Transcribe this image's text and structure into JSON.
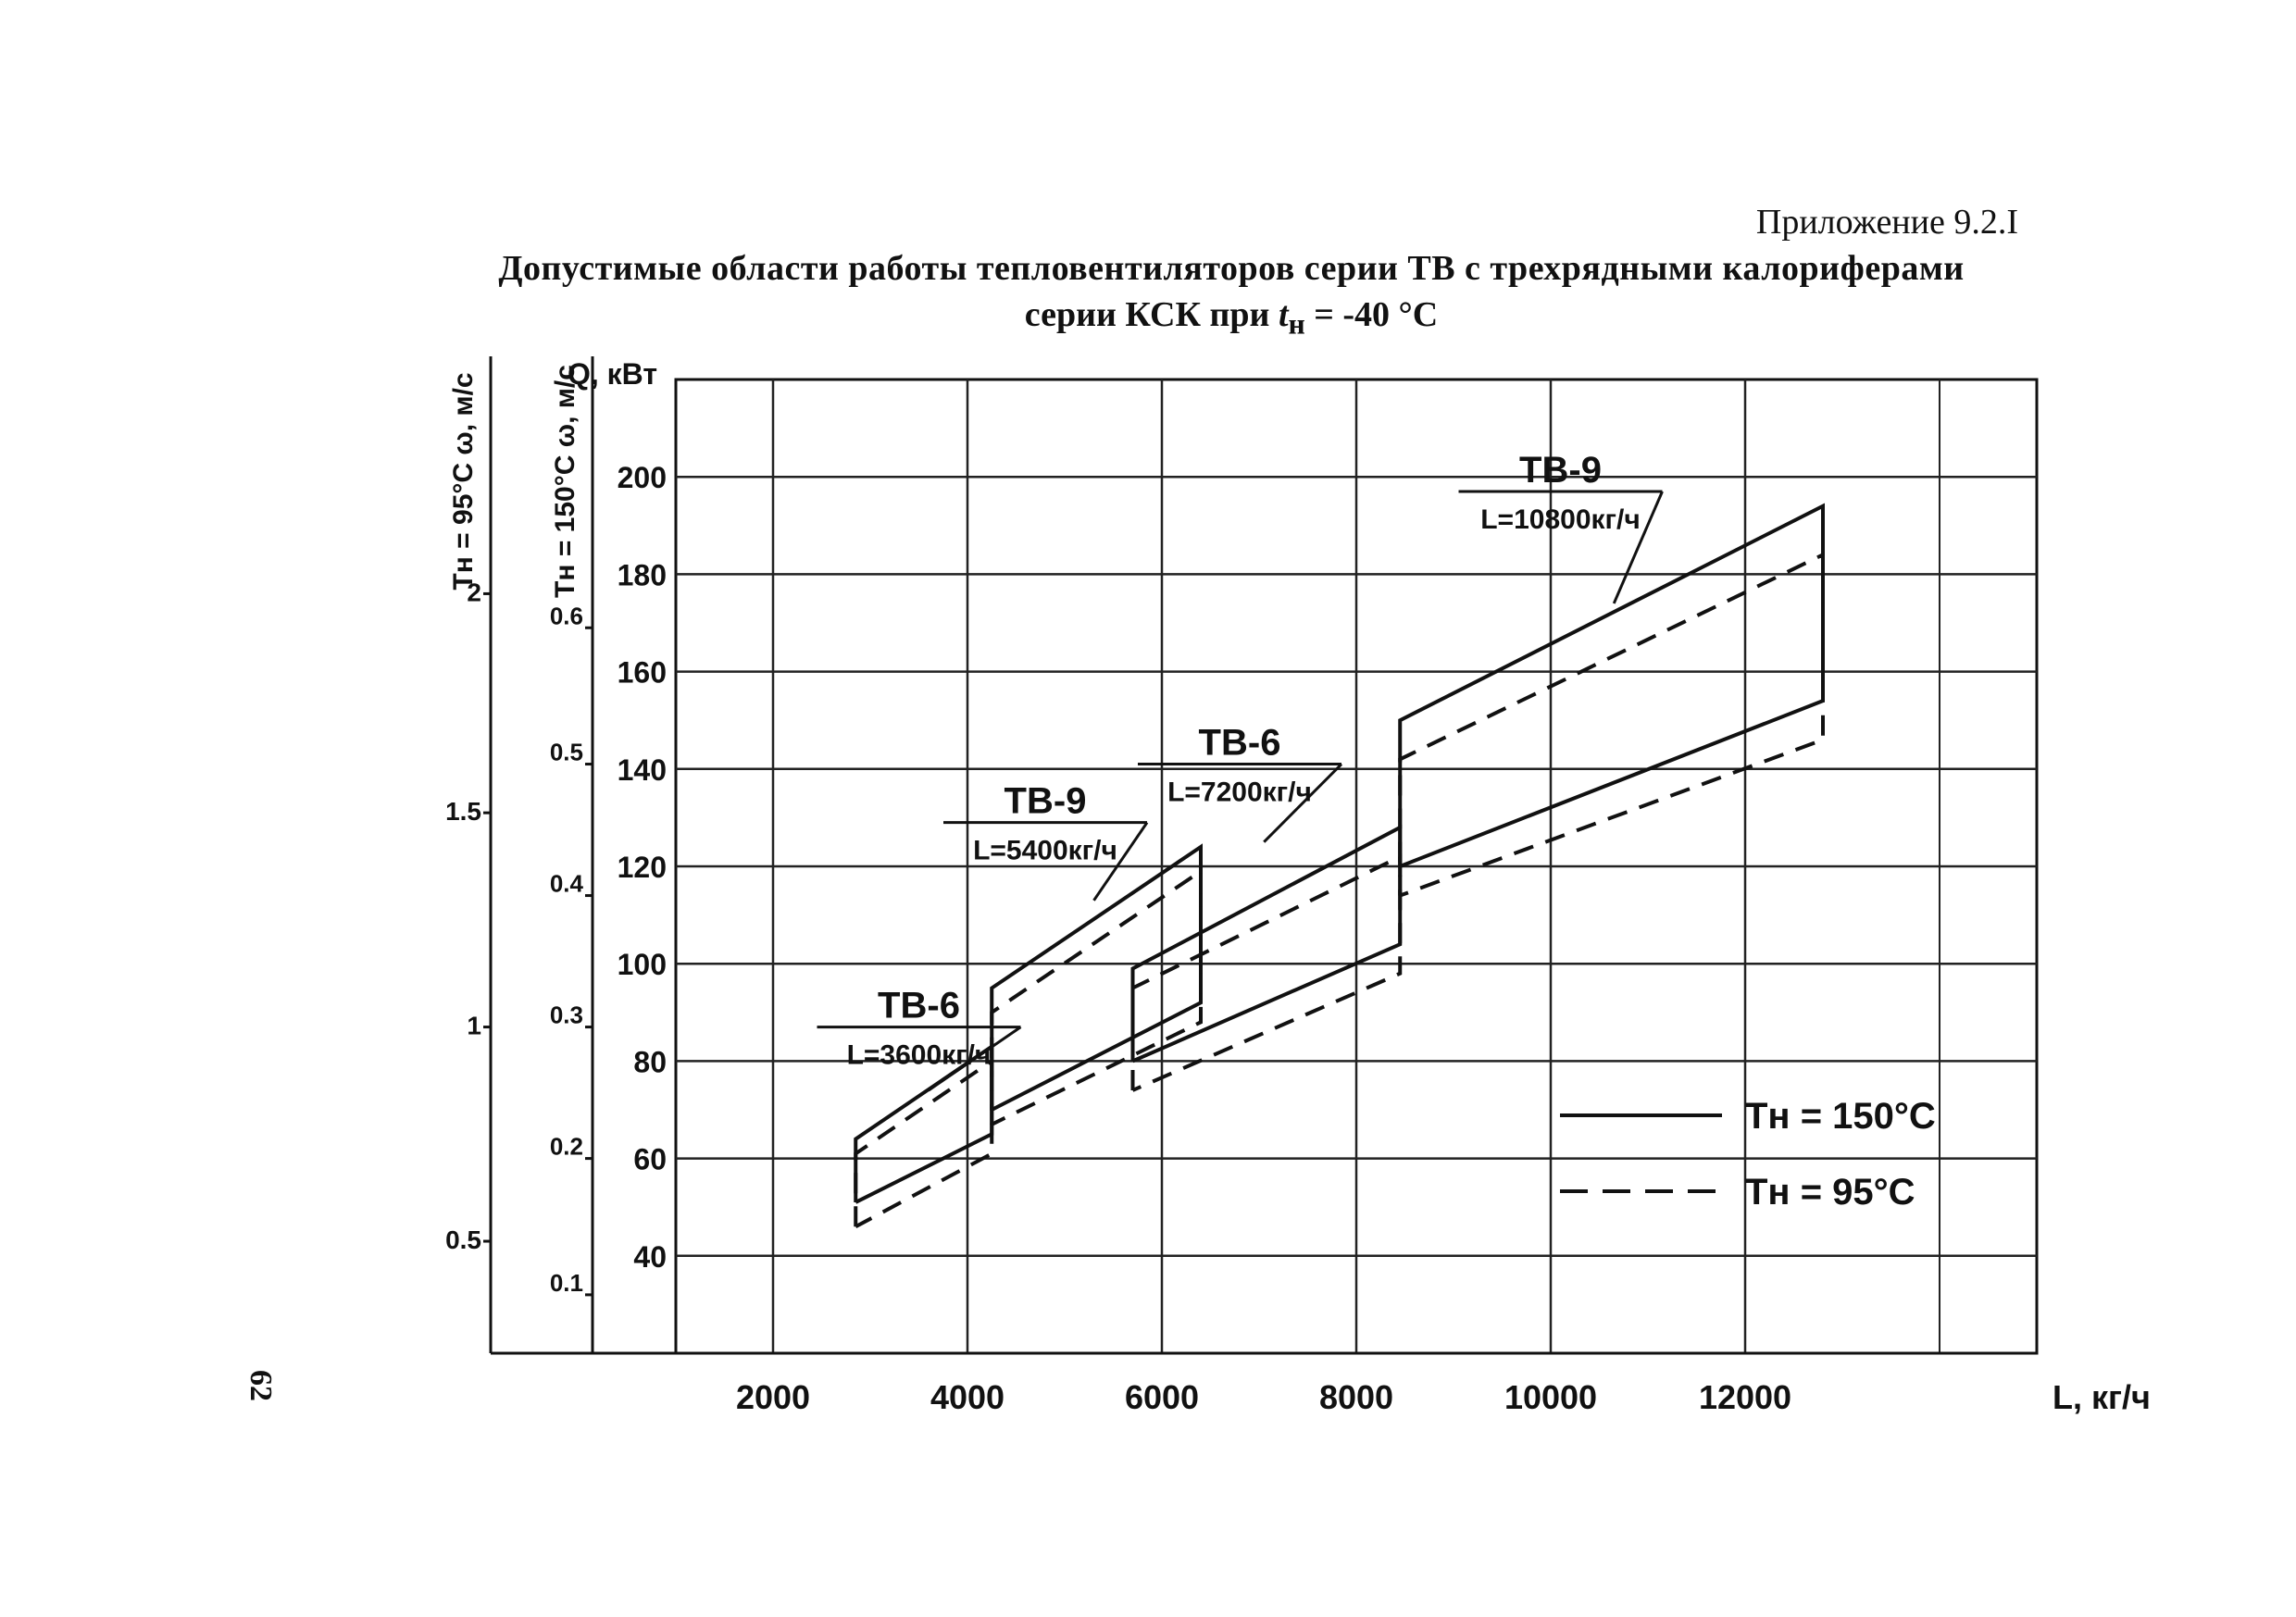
{
  "header": {
    "appendix": "Приложение 9.2.I",
    "title_line1": "Допустимые области работы тепловентиляторов серии ТВ с трехрядными калориферами",
    "title_line2": "серии КСК при",
    "title_sym": "t",
    "title_sym_sub": "н",
    "title_value": "= -40 °C"
  },
  "page_number": "62",
  "chart_data": {
    "type": "line",
    "xlabel": "L, кг/ч",
    "ylabel": "Q, кВт",
    "y2label": "Тн = 150°C ω, м/с",
    "y3label": "Тн = 95°C ω, м/с",
    "xlim": [
      1000,
      15000
    ],
    "ylim": [
      20,
      220
    ],
    "x_ticks": [
      2000,
      4000,
      6000,
      8000,
      10000,
      12000
    ],
    "y_ticks": [
      40,
      60,
      80,
      100,
      120,
      140,
      160,
      180,
      200
    ],
    "axis2_ticks": [
      {
        "label": "0.1",
        "q": 32
      },
      {
        "label": "0.2",
        "q": 60
      },
      {
        "label": "0.3",
        "q": 87
      },
      {
        "label": "0.4",
        "q": 114
      },
      {
        "label": "0.5",
        "q": 141
      },
      {
        "label": "0.6",
        "q": 169
      }
    ],
    "axis3_ticks": [
      {
        "label": "0.5",
        "q": 43
      },
      {
        "label": "1",
        "q": 87
      },
      {
        "label": "1.5",
        "q": 131
      },
      {
        "label": "2",
        "q": 176
      }
    ],
    "grid": true,
    "regions": [
      {
        "name": "ТВ-6",
        "note": "L=3600кг/ч",
        "solid": {
          "x1": 2850,
          "x2": 4250,
          "top": [
            64,
            83
          ],
          "bottom": [
            51,
            65
          ]
        },
        "dashed": {
          "x1": 2850,
          "x2": 4250,
          "top": [
            61,
            80
          ],
          "bottom": [
            46,
            61
          ]
        }
      },
      {
        "name": "ТВ-9",
        "note": "L=5400кг/ч",
        "solid": {
          "x1": 4250,
          "x2": 6400,
          "top": [
            95,
            124
          ],
          "bottom": [
            70,
            92
          ]
        },
        "dashed": {
          "x1": 4250,
          "x2": 6400,
          "top": [
            90,
            119
          ],
          "bottom": [
            67,
            88
          ]
        }
      },
      {
        "name": "ТВ-6",
        "note": "L=7200кг/ч",
        "solid": {
          "x1": 5700,
          "x2": 8450,
          "top": [
            99,
            128
          ],
          "bottom": [
            80,
            104
          ]
        },
        "dashed": {
          "x1": 5700,
          "x2": 8450,
          "top": [
            95,
            122
          ],
          "bottom": [
            74,
            98
          ]
        }
      },
      {
        "name": "ТВ-9",
        "note": "L=10800кг/ч",
        "solid": {
          "x1": 8450,
          "x2": 12800,
          "top": [
            150,
            194
          ],
          "bottom": [
            120,
            154
          ]
        },
        "dashed": {
          "x1": 8450,
          "x2": 12800,
          "top": [
            142,
            184
          ],
          "bottom": [
            114,
            146
          ]
        }
      }
    ],
    "legend": [
      {
        "style": "solid",
        "label": "Тн = 150°C"
      },
      {
        "style": "dashed",
        "label": "Тн = 95°C"
      }
    ],
    "legend_position": "bottom-right"
  }
}
